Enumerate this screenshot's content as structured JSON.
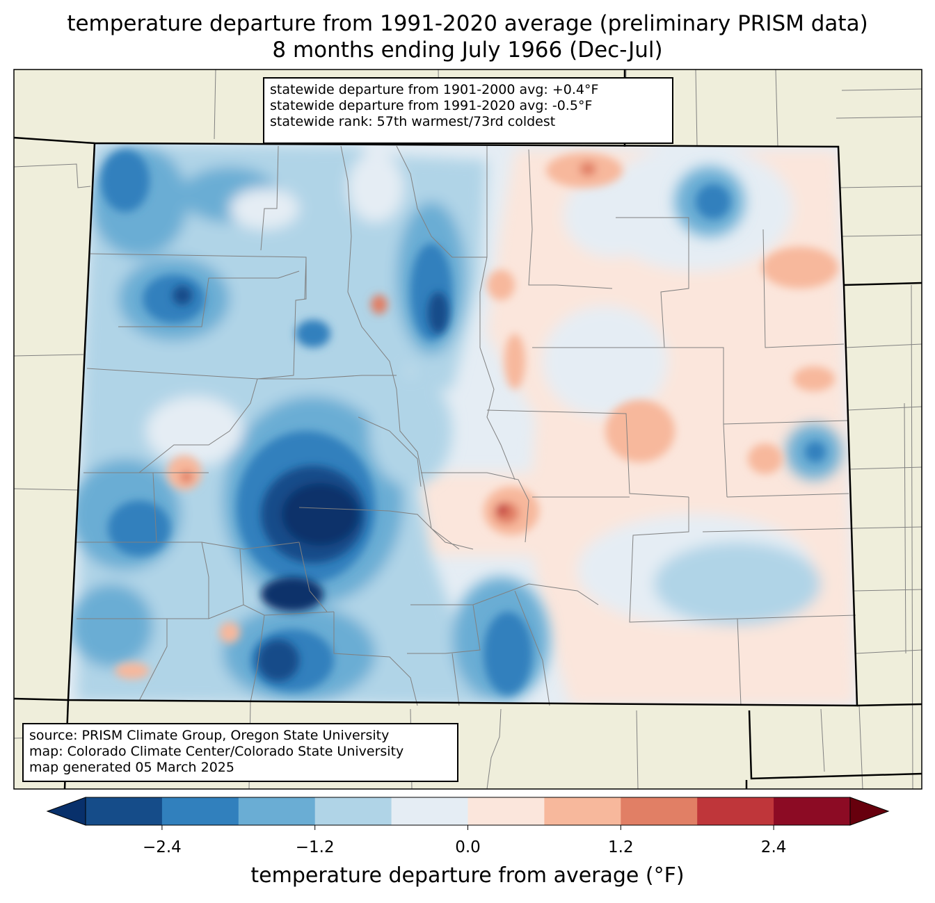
{
  "title": {
    "line1": "temperature departure from 1991-2020 average (preliminary PRISM data)",
    "line2": "8 months ending July 1966 (Dec-Jul)"
  },
  "stats": {
    "line1": "statewide departure from 1901-2000 avg: +0.4°F",
    "line2": "statewide departure from 1991-2020 avg: -0.5°F",
    "line3": "statewide rank: 57th warmest/73rd coldest"
  },
  "source": {
    "line1": "source: PRISM Climate Group, Oregon State University",
    "line2": "map: Colorado Climate Center/Colorado State University",
    "line3": "map generated 05 March 2025"
  },
  "colorbar": {
    "label": "temperature departure from average (°F)",
    "ticks": [
      "−2.4",
      "−1.2",
      "0.0",
      "1.2",
      "2.4"
    ],
    "tick_values": [
      -2.4,
      -1.2,
      0.0,
      1.2,
      2.4
    ],
    "range": [
      -3.0,
      3.0
    ],
    "colors": [
      "#08306b",
      "#154c89",
      "#3180bd",
      "#6aadd4",
      "#b0d4e7",
      "#e5edf4",
      "#fbe6dc",
      "#f7b89c",
      "#e17f65",
      "#bf363a",
      "#8c0b24",
      "#67000d"
    ]
  },
  "colors": {
    "land": "#efeedb",
    "county_line": "#808080",
    "state_line": "#000000"
  }
}
